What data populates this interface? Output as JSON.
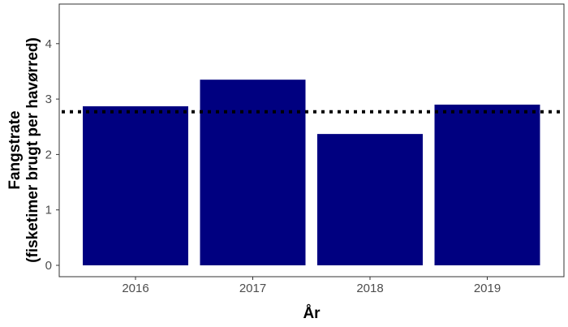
{
  "chart_data": {
    "type": "bar",
    "title": "",
    "xlabel": "År",
    "ylabel_line1": "Fangstrate",
    "ylabel_line2": "(fisketimer brugt per havørred)",
    "categories": [
      "2016",
      "2017",
      "2018",
      "2019"
    ],
    "values": [
      2.87,
      3.35,
      2.37,
      2.9
    ],
    "reference_line": {
      "value": 2.77,
      "style": "dotted"
    },
    "ylim": [
      0,
      4.7
    ],
    "yticks": [
      0,
      1,
      2,
      3,
      4
    ],
    "grid": false,
    "legend": "none",
    "bar_color": "#000080",
    "reference_line_color": "#000000"
  }
}
